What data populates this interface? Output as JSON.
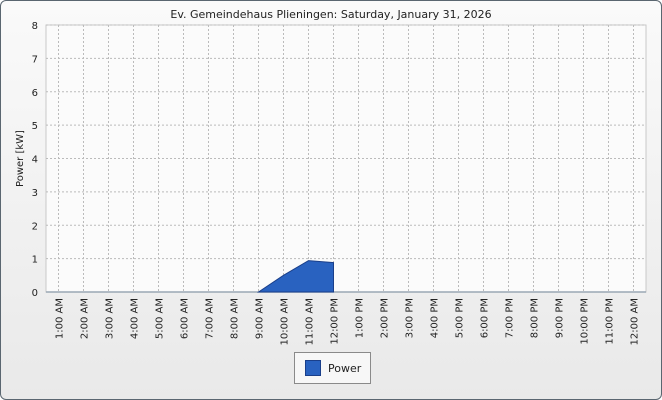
{
  "chart_data": {
    "type": "area",
    "title": "Ev. Gemeindehaus Plieningen: Saturday, January 31, 2026",
    "xlabel": "",
    "ylabel": "Power [kW]",
    "ylim": [
      0,
      8
    ],
    "yticks": [
      "0",
      "1",
      "2",
      "3",
      "4",
      "5",
      "6",
      "7",
      "8"
    ],
    "categories": [
      "1:00 AM",
      "2:00 AM",
      "3:00 AM",
      "4:00 AM",
      "5:00 AM",
      "6:00 AM",
      "7:00 AM",
      "8:00 AM",
      "9:00 AM",
      "10:00 AM",
      "11:00 AM",
      "12:00 PM",
      "1:00 PM",
      "2:00 PM",
      "3:00 PM",
      "4:00 PM",
      "5:00 PM",
      "6:00 PM",
      "7:00 PM",
      "8:00 PM",
      "9:00 PM",
      "10:00 PM",
      "11:00 PM",
      "12:00 AM"
    ],
    "grid": true,
    "legend_position": "bottom",
    "series": [
      {
        "name": "Power",
        "color": "#2962c0",
        "points": [
          [
            "9:00 AM",
            0
          ],
          [
            "10:00 AM",
            0.5
          ],
          [
            "11:00 AM",
            0.94
          ],
          [
            "12:00 PM",
            0.88
          ]
        ]
      }
    ]
  }
}
